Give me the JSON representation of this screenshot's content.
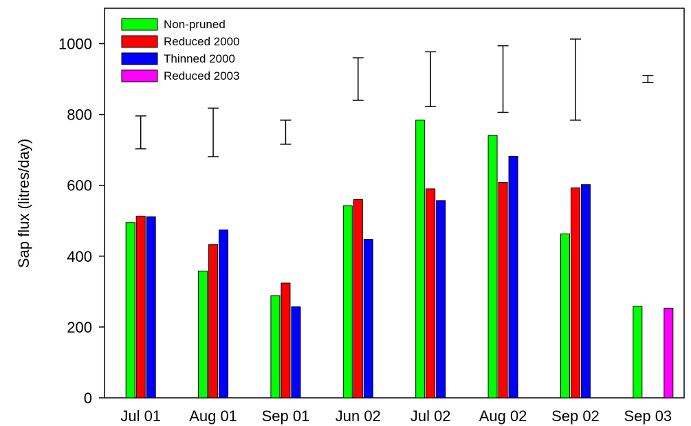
{
  "chart_data": {
    "type": "bar",
    "title": "",
    "xlabel": "",
    "ylabel": "Sap flux (litres/day)",
    "ylim": [
      0,
      1100
    ],
    "yticks": [
      0,
      200,
      400,
      600,
      800,
      1000
    ],
    "ytick_labels": [
      "0",
      "200",
      "400",
      "600",
      "800",
      "1000"
    ],
    "grid": false,
    "legend_position": "top-left",
    "categories": [
      "Jul 01",
      "Aug 01",
      "Sep 01",
      "Jun 02",
      "Jul 02",
      "Aug 02",
      "Sep 02",
      "Sep 03"
    ],
    "series": [
      {
        "name": "Non-pruned",
        "color": "#00ff00",
        "values": [
          495,
          358,
          288,
          542,
          784,
          741,
          463,
          259
        ]
      },
      {
        "name": "Reduced 2000",
        "color": "#ff0000",
        "values": [
          513,
          433,
          324,
          560,
          590,
          608,
          593,
          null
        ]
      },
      {
        "name": "Thinned 2000",
        "color": "#0000ff",
        "values": [
          511,
          474,
          257,
          447,
          557,
          682,
          602,
          null
        ]
      },
      {
        "name": "Reduced 2003",
        "color": "#ff00ff",
        "values": [
          null,
          null,
          null,
          null,
          null,
          null,
          null,
          253
        ]
      }
    ],
    "error_bars": [
      {
        "low": 703,
        "high": 796
      },
      {
        "low": 681,
        "high": 818
      },
      {
        "low": 716,
        "high": 784
      },
      {
        "low": 840,
        "high": 960
      },
      {
        "low": 822,
        "high": 977
      },
      {
        "low": 806,
        "high": 994
      },
      {
        "low": 784,
        "high": 1013
      },
      {
        "low": 890,
        "high": 910
      }
    ]
  }
}
